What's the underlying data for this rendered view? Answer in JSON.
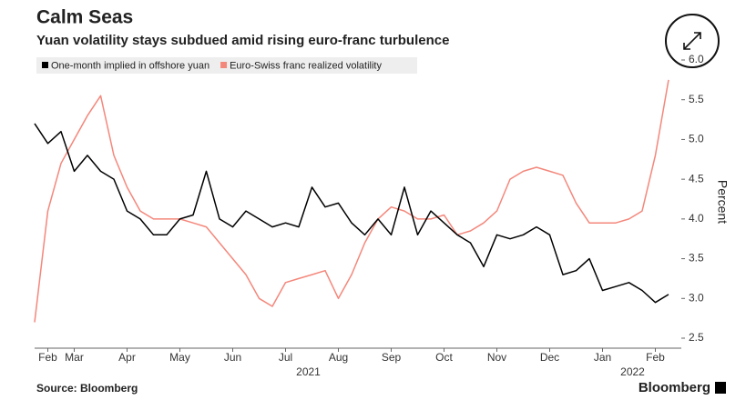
{
  "chart_data": {
    "type": "line",
    "title": "Calm Seas",
    "subtitle": "Yuan volatility stays subdued amid rising euro-franc turbulence",
    "y_label": "Percent",
    "source": "Source: Bloomberg",
    "brand": "Bloomberg",
    "year_labels": [
      "2021",
      "2022"
    ],
    "categories": [
      null,
      "Feb",
      null,
      "Mar",
      null,
      null,
      null,
      "Apr",
      null,
      null,
      null,
      "May",
      null,
      null,
      null,
      "Jun",
      null,
      null,
      null,
      "Jul",
      null,
      null,
      null,
      "Aug",
      null,
      null,
      null,
      "Sep",
      null,
      null,
      null,
      "Oct",
      null,
      null,
      null,
      "Nov",
      null,
      null,
      null,
      "Dec",
      null,
      null,
      null,
      "Jan",
      null,
      null,
      null,
      "Feb",
      null
    ],
    "series": [
      {
        "name": "One-month implied in offshore yuan",
        "color": "#000000",
        "values": [
          5.2,
          4.95,
          5.1,
          4.6,
          4.8,
          4.6,
          4.5,
          4.1,
          4.0,
          3.8,
          3.8,
          4.0,
          4.05,
          4.6,
          4.0,
          3.9,
          4.1,
          4.0,
          3.9,
          3.95,
          3.9,
          4.4,
          4.15,
          4.2,
          3.95,
          3.8,
          4.0,
          3.8,
          4.4,
          3.8,
          4.1,
          3.95,
          3.8,
          3.7,
          3.4,
          3.8,
          3.75,
          3.8,
          3.9,
          3.8,
          3.3,
          3.35,
          3.5,
          3.1,
          3.15,
          3.2,
          3.1,
          2.95,
          3.05
        ]
      },
      {
        "name": "Euro-Swiss franc realized volatility",
        "color": "#f4877b",
        "values": [
          2.7,
          4.1,
          4.7,
          5.0,
          5.3,
          5.55,
          4.8,
          4.4,
          4.1,
          4.0,
          4.0,
          4.0,
          3.95,
          3.9,
          3.7,
          3.5,
          3.3,
          3.0,
          2.9,
          3.2,
          3.25,
          3.3,
          3.35,
          3.0,
          3.3,
          3.7,
          4.0,
          4.15,
          4.1,
          4.0,
          4.0,
          4.05,
          3.8,
          3.85,
          3.95,
          4.1,
          4.5,
          4.6,
          4.65,
          4.6,
          4.55,
          4.2,
          3.95,
          3.95,
          3.95,
          4.0,
          4.1,
          4.8,
          5.75
        ]
      }
    ],
    "ylim": [
      2.5,
      6.0
    ],
    "yticks": [
      2.5,
      {
        "value": 3,
        "label": "3.0"
      },
      3.5,
      {
        "value": 4,
        "label": "4.0"
      },
      4.5,
      {
        "value": 5,
        "label": "5.0"
      },
      5.5,
      {
        "value": 6,
        "label": "6.0"
      }
    ],
    "y_axis_side": "right",
    "grid": false
  }
}
